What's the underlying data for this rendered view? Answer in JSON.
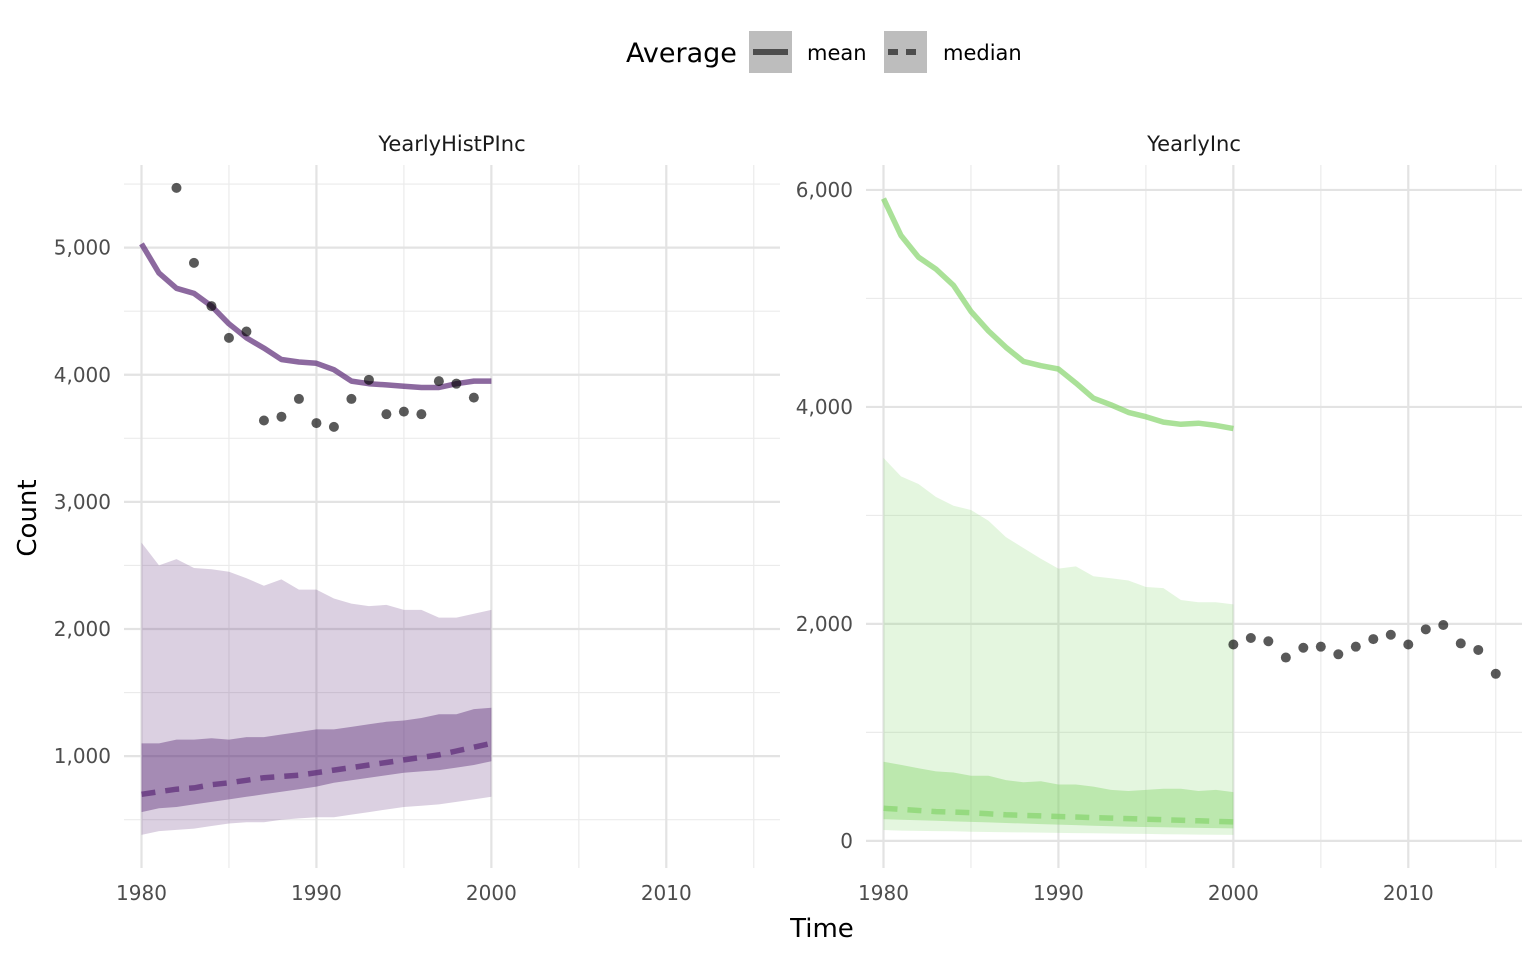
{
  "legend": {
    "title": "Average",
    "items": [
      {
        "label": "mean",
        "linetype": "solid"
      },
      {
        "label": "median",
        "linetype": "dashed"
      }
    ]
  },
  "axes": {
    "xlabel": "Time",
    "ylabel": "Count"
  },
  "chart_data": [
    {
      "type": "line",
      "panel": "YearlyHistPInc",
      "color": "#5b2a76",
      "xlim": [
        1979,
        2016.5
      ],
      "ylim": [
        120,
        5650
      ],
      "x_ticks": [
        1980,
        1990,
        2000,
        2010
      ],
      "x_tick_labels": [
        "1980",
        "1990",
        "2000",
        "2010"
      ],
      "y_ticks": [
        1000,
        2000,
        3000,
        4000,
        5000
      ],
      "y_tick_labels": [
        "1,000",
        "2,000",
        "3,000",
        "4,000",
        "5,000"
      ],
      "grid": true,
      "years": [
        1980,
        1981,
        1982,
        1983,
        1984,
        1985,
        1986,
        1987,
        1988,
        1989,
        1990,
        1991,
        1992,
        1993,
        1994,
        1995,
        1996,
        1997,
        1998,
        1999,
        2000
      ],
      "series": [
        {
          "name": "mean",
          "linetype": "solid",
          "values": [
            5030,
            4800,
            4680,
            4640,
            4540,
            4400,
            4290,
            4210,
            4120,
            4100,
            4090,
            4040,
            3950,
            3930,
            3920,
            3910,
            3900,
            3900,
            3930,
            3950,
            3950
          ]
        },
        {
          "name": "median",
          "linetype": "dashed",
          "values": [
            700,
            720,
            740,
            750,
            775,
            790,
            810,
            830,
            840,
            850,
            870,
            890,
            910,
            930,
            950,
            970,
            990,
            1010,
            1040,
            1070,
            1100
          ]
        }
      ],
      "band_outer": {
        "lower": [
          380,
          410,
          420,
          430,
          450,
          470,
          480,
          480,
          500,
          510,
          520,
          520,
          540,
          560,
          580,
          600,
          610,
          620,
          640,
          660,
          680
        ],
        "upper": [
          2680,
          2500,
          2550,
          2480,
          2470,
          2450,
          2400,
          2340,
          2390,
          2310,
          2310,
          2240,
          2200,
          2180,
          2190,
          2150,
          2150,
          2090,
          2090,
          2120,
          2150
        ]
      },
      "band_inner": {
        "lower": [
          560,
          590,
          600,
          620,
          640,
          660,
          680,
          700,
          720,
          740,
          760,
          790,
          810,
          830,
          850,
          870,
          880,
          890,
          910,
          930,
          960
        ],
        "upper": [
          1100,
          1100,
          1130,
          1130,
          1140,
          1130,
          1150,
          1150,
          1170,
          1190,
          1210,
          1210,
          1230,
          1250,
          1270,
          1280,
          1300,
          1330,
          1330,
          1370,
          1380
        ]
      },
      "observed": {
        "x": [
          1982,
          1983,
          1984,
          1985,
          1986,
          1987,
          1988,
          1989,
          1990,
          1991,
          1992,
          1993,
          1994,
          1995,
          1996,
          1997,
          1998,
          1999
        ],
        "y": [
          5470,
          4880,
          4540,
          4290,
          4340,
          3640,
          3670,
          3810,
          3620,
          3590,
          3810,
          3960,
          3690,
          3710,
          3690,
          3950,
          3930,
          3820
        ]
      }
    },
    {
      "type": "line",
      "panel": "YearlyInc",
      "color": "#86d46c",
      "xlim": [
        1979,
        2016.5
      ],
      "ylim": [
        -250,
        6230
      ],
      "x_ticks": [
        1980,
        1990,
        2000,
        2010
      ],
      "x_tick_labels": [
        "1980",
        "1990",
        "2000",
        "2010"
      ],
      "y_ticks": [
        0,
        2000,
        4000,
        6000
      ],
      "y_tick_labels": [
        "0",
        "2,000",
        "4,000",
        "6,000"
      ],
      "grid": true,
      "years": [
        1980,
        1981,
        1982,
        1983,
        1984,
        1985,
        1986,
        1987,
        1988,
        1989,
        1990,
        1991,
        1992,
        1993,
        1994,
        1995,
        1996,
        1997,
        1998,
        1999,
        2000
      ],
      "series": [
        {
          "name": "mean",
          "linetype": "solid",
          "values": [
            5920,
            5580,
            5380,
            5270,
            5120,
            4880,
            4700,
            4550,
            4420,
            4380,
            4350,
            4220,
            4080,
            4020,
            3950,
            3910,
            3860,
            3840,
            3850,
            3830,
            3800
          ]
        },
        {
          "name": "median",
          "linetype": "dashed",
          "values": [
            300,
            290,
            280,
            270,
            265,
            260,
            250,
            240,
            235,
            230,
            225,
            220,
            215,
            210,
            205,
            200,
            195,
            190,
            185,
            180,
            175
          ]
        }
      ],
      "band_outer": {
        "lower": [
          100,
          95,
          92,
          90,
          88,
          85,
          82,
          80,
          78,
          76,
          74,
          72,
          70,
          68,
          66,
          64,
          62,
          60,
          58,
          56,
          55
        ],
        "upper": [
          3530,
          3360,
          3290,
          3170,
          3090,
          3050,
          2950,
          2800,
          2700,
          2600,
          2510,
          2530,
          2440,
          2420,
          2400,
          2340,
          2330,
          2220,
          2200,
          2200,
          2180
        ]
      },
      "band_inner": {
        "lower": [
          200,
          195,
          190,
          185,
          180,
          175,
          170,
          165,
          160,
          155,
          150,
          145,
          140,
          135,
          130,
          128,
          125,
          122,
          120,
          118,
          115
        ],
        "upper": [
          730,
          700,
          670,
          640,
          630,
          600,
          600,
          560,
          540,
          550,
          520,
          520,
          500,
          470,
          460,
          470,
          480,
          480,
          460,
          470,
          450
        ]
      },
      "observed": {
        "x": [
          2000,
          2001,
          2002,
          2003,
          2004,
          2005,
          2006,
          2007,
          2008,
          2009,
          2010,
          2011,
          2012,
          2013,
          2014,
          2015
        ],
        "y": [
          1810,
          1870,
          1840,
          1690,
          1780,
          1790,
          1720,
          1790,
          1860,
          1900,
          1810,
          1950,
          1990,
          1820,
          1760,
          1540
        ]
      }
    }
  ]
}
